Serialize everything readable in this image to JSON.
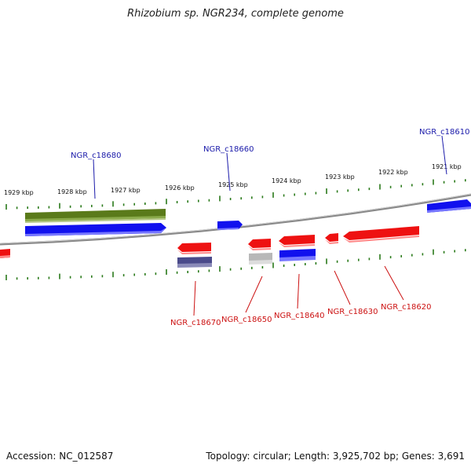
{
  "title": "Rhizobium sp. NGR234, complete genome",
  "footer": {
    "accession": "Accession: NC_012587",
    "summary": "Topology: circular; Length: 3,925,702 bp; Genes: 3,691"
  },
  "colors": {
    "backbone": "#888888",
    "tick": "#2a7a1a",
    "forward_label": "#1a1aaa",
    "reverse_label": "#cc1111",
    "gene_red": "#ee1111",
    "gene_blue": "#1111ee",
    "gene_olive": "#5a7a1a",
    "gene_purple": "#4a4a8a",
    "gene_grey": "#b8b8b8"
  },
  "scale_labels": [
    "1929 kbp",
    "1928 kbp",
    "1927 kbp",
    "1926 kbp",
    "1925 kbp",
    "1924 kbp",
    "1923 kbp",
    "1922 kbp",
    "1921 kbp"
  ],
  "gene_labels": {
    "forward": [
      "NGR_c18680",
      "NGR_c18660",
      "NGR_c18610"
    ],
    "reverse": [
      "NGR_c18670",
      "NGR_c18650",
      "NGR_c18640",
      "NGR_c18630",
      "NGR_c18620"
    ]
  }
}
